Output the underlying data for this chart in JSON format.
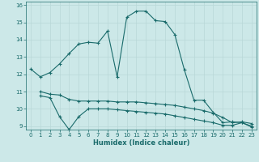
{
  "xlabel": "Humidex (Indice chaleur)",
  "bg_color": "#cce8e8",
  "line_color": "#1a6b6b",
  "grid_color": "#b8d8d8",
  "xlim": [
    -0.5,
    23.5
  ],
  "ylim": [
    8.8,
    16.2
  ],
  "yticks": [
    9,
    10,
    11,
    12,
    13,
    14,
    15,
    16
  ],
  "xticks": [
    0,
    1,
    2,
    3,
    4,
    5,
    6,
    7,
    8,
    9,
    10,
    11,
    12,
    13,
    14,
    15,
    16,
    17,
    18,
    19,
    20,
    21,
    22,
    23
  ],
  "line1_x": [
    0,
    1,
    2,
    3,
    4,
    5,
    6,
    7,
    8,
    9,
    10,
    11,
    12,
    13,
    14,
    15,
    16,
    17,
    18,
    19,
    20,
    21,
    22,
    23
  ],
  "line1_y": [
    12.3,
    11.85,
    12.1,
    12.6,
    13.2,
    13.75,
    13.85,
    13.8,
    14.5,
    11.85,
    15.3,
    15.65,
    15.65,
    15.1,
    15.05,
    14.3,
    12.25,
    10.5,
    10.5,
    9.8,
    9.2,
    9.25,
    9.2,
    9.0
  ],
  "line2_x": [
    1,
    2,
    3,
    4,
    5,
    6,
    7,
    8,
    9,
    10,
    11,
    12,
    13,
    14,
    15,
    16,
    17,
    18,
    19,
    20,
    21,
    22,
    23
  ],
  "line2_y": [
    11.0,
    10.85,
    10.8,
    10.55,
    10.45,
    10.45,
    10.45,
    10.45,
    10.4,
    10.4,
    10.4,
    10.35,
    10.3,
    10.25,
    10.2,
    10.1,
    10.0,
    9.9,
    9.75,
    9.5,
    9.2,
    9.25,
    9.15
  ],
  "line3_x": [
    1,
    2,
    3,
    4,
    5,
    6,
    7,
    8,
    9,
    10,
    11,
    12,
    13,
    14,
    15,
    16,
    17,
    18,
    19,
    20,
    21,
    22,
    23
  ],
  "line3_y": [
    10.75,
    10.65,
    9.55,
    8.8,
    9.55,
    10.0,
    10.0,
    10.0,
    9.95,
    9.9,
    9.85,
    9.8,
    9.75,
    9.7,
    9.6,
    9.5,
    9.4,
    9.3,
    9.2,
    9.05,
    9.05,
    9.2,
    8.95
  ]
}
